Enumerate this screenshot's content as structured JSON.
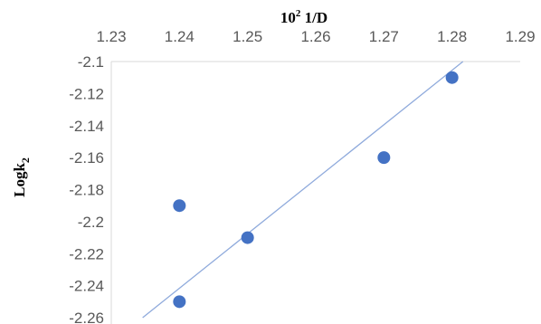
{
  "chart_data": {
    "type": "scatter",
    "title": "",
    "xlabel": {
      "base": "10",
      "exponent": "2",
      "rest": " 1/D"
    },
    "ylabel": {
      "base": "Logk",
      "subscript": "2"
    },
    "x_axis_position": "top",
    "xlim": [
      1.23,
      1.29
    ],
    "ylim": [
      -2.26,
      -2.1
    ],
    "x_ticks": [
      1.23,
      1.24,
      1.25,
      1.26,
      1.27,
      1.28,
      1.29
    ],
    "x_tick_labels": [
      "1.23",
      "1.24",
      "1.25",
      "1.26",
      "1.27",
      "1.28",
      "1.29"
    ],
    "y_ticks": [
      -2.1,
      -2.12,
      -2.14,
      -2.16,
      -2.18,
      -2.2,
      -2.22,
      -2.24,
      -2.26
    ],
    "y_tick_labels": [
      "-2.1",
      "-2.12",
      "-2.14",
      "-2.16",
      "-2.18",
      "-2.2",
      "-2.22",
      "-2.24",
      "-2.26"
    ],
    "grid": false,
    "series": [
      {
        "points": [
          {
            "x": 1.24,
            "y": -2.19
          },
          {
            "x": 1.24,
            "y": -2.25
          },
          {
            "x": 1.25,
            "y": -2.21
          },
          {
            "x": 1.27,
            "y": -2.16
          },
          {
            "x": 1.28,
            "y": -2.11
          }
        ],
        "marker_color": "#4472c4"
      }
    ],
    "trendline": {
      "type": "linear",
      "start": {
        "x": 1.2346,
        "y": -2.26
      },
      "end": {
        "x": 1.2816,
        "y": -2.1
      },
      "color": "#8faadc"
    }
  }
}
